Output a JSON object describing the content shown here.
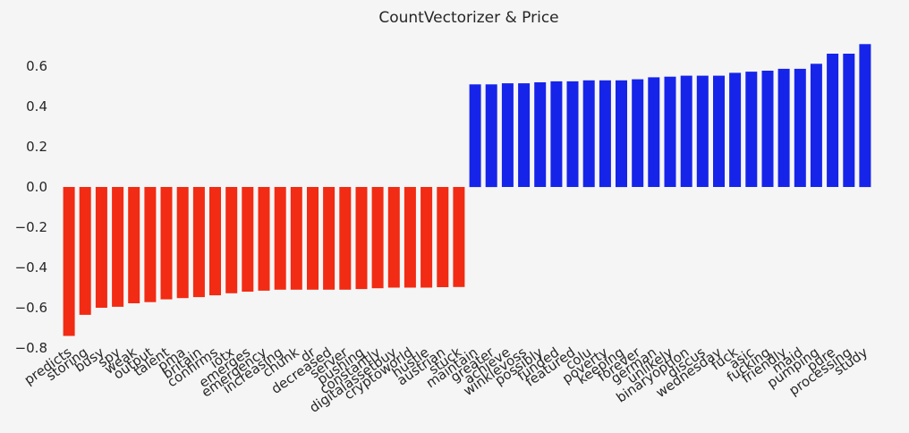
{
  "chart_data": {
    "type": "bar",
    "title": "CountVectorizer & Price",
    "xlabel": "",
    "ylabel": "",
    "ylim": [
      -0.8,
      0.72
    ],
    "yticks": [
      0.6,
      0.4,
      0.2,
      0.0,
      -0.2,
      -0.4,
      -0.6,
      -0.8
    ],
    "ytick_labels": [
      "0.6",
      "0.4",
      "0.2",
      "0.0",
      "−0.2",
      "−0.4",
      "−0.6",
      "−0.8"
    ],
    "grid": false,
    "legend": "none",
    "colors": {
      "negative": "#f22b14",
      "positive": "#1624ea",
      "background": "#f5f5f5",
      "text": "#262626"
    },
    "categories": [
      "predicts",
      "storing",
      "busy",
      "spy",
      "weak",
      "output",
      "talent",
      "pma",
      "britain",
      "confirms",
      "iotx",
      "emerges",
      "emergency",
      "increasing",
      "chunk",
      "dr",
      "decreased",
      "server",
      "pushing",
      "constantly",
      "digitalassetbuy",
      "cryptoworld",
      "hustle",
      "austrian",
      "stuck",
      "maintain",
      "greater",
      "achieve",
      "winklevoss",
      "possibly",
      "funded",
      "featured",
      "colu",
      "poverty",
      "keeping",
      "forever",
      "german",
      "unlikely",
      "binaryoption",
      "discus",
      "wednesday",
      "fuck",
      "asic",
      "fucking",
      "friendly",
      "maid",
      "pumping",
      "pure",
      "processing",
      "study"
    ],
    "values": [
      -0.74,
      -0.635,
      -0.6,
      -0.595,
      -0.578,
      -0.572,
      -0.558,
      -0.552,
      -0.547,
      -0.538,
      -0.528,
      -0.52,
      -0.515,
      -0.51,
      -0.51,
      -0.51,
      -0.51,
      -0.51,
      -0.507,
      -0.503,
      -0.5,
      -0.5,
      -0.5,
      -0.498,
      -0.497,
      0.51,
      0.51,
      0.515,
      0.515,
      0.52,
      0.525,
      0.525,
      0.53,
      0.53,
      0.53,
      0.535,
      0.545,
      0.548,
      0.553,
      0.553,
      0.553,
      0.567,
      0.573,
      0.578,
      0.587,
      0.587,
      0.612,
      0.662,
      0.662,
      0.71
    ]
  }
}
